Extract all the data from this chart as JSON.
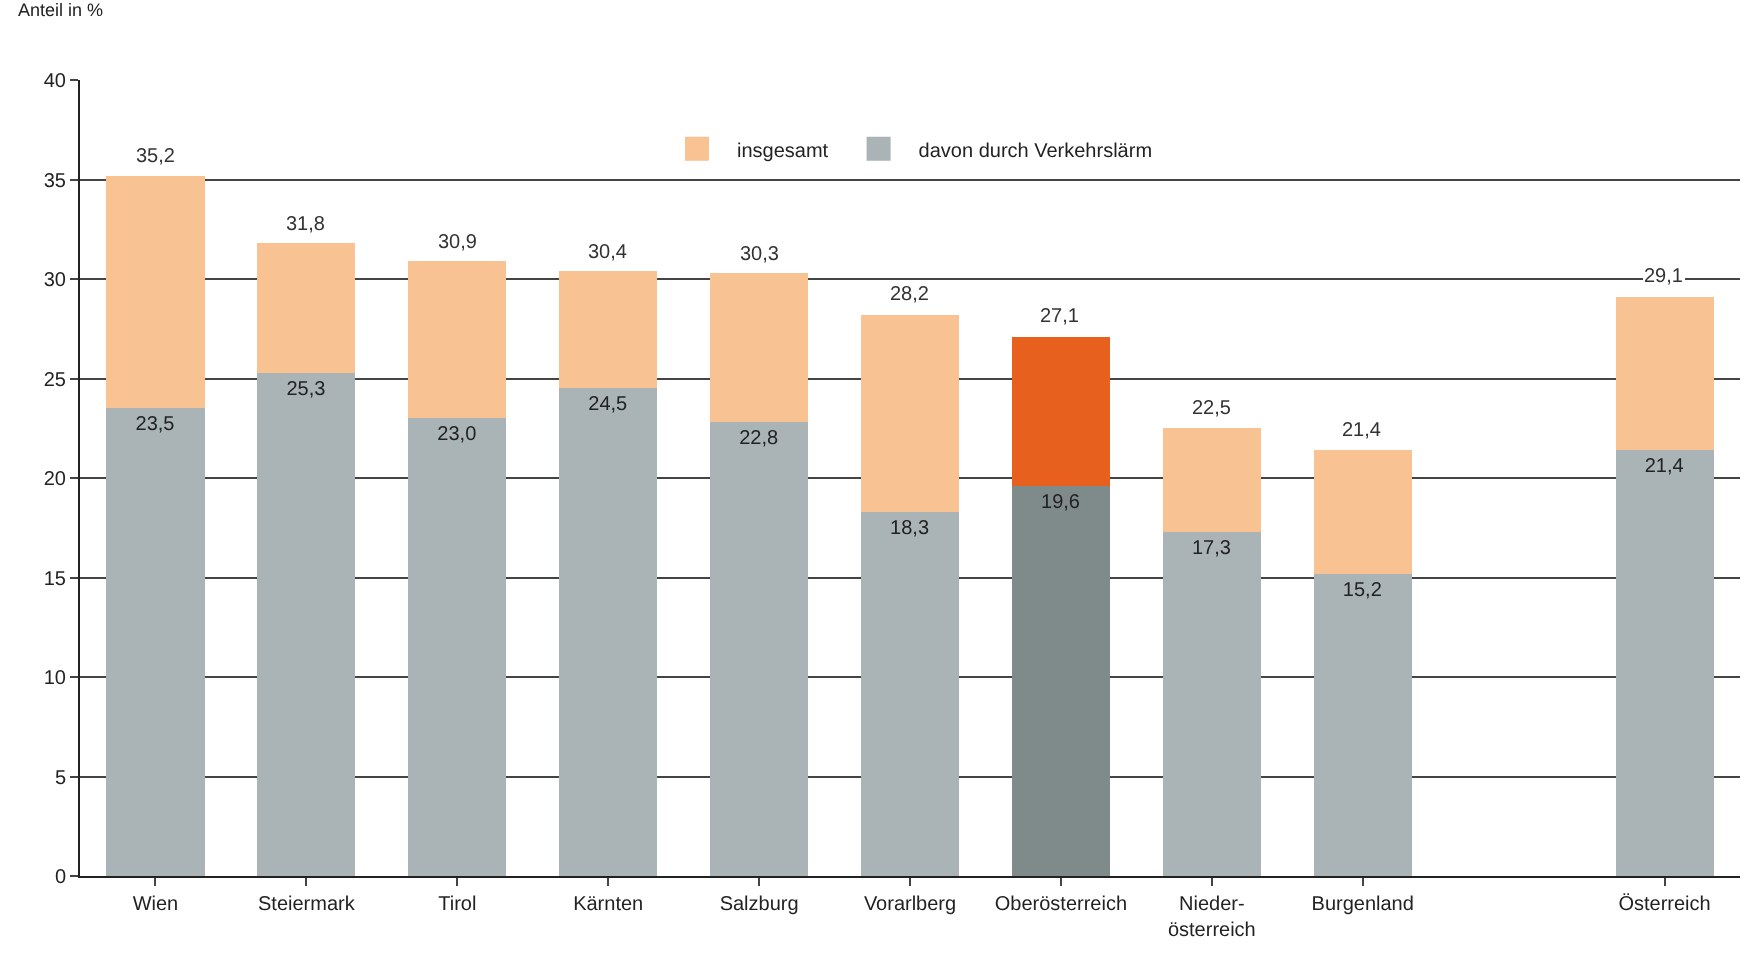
{
  "chart_data": {
    "type": "bar",
    "stacked": true,
    "ylabel": "Anteil in %",
    "categories": [
      "Wien",
      "Steiermark",
      "Tirol",
      "Kärnten",
      "Salzburg",
      "Vorarlberg",
      "Oberösterreich",
      "Nieder- österreich",
      "Burgenland",
      null,
      "Österreich"
    ],
    "series": [
      {
        "name": "davon durch Verkehrslärm",
        "color": "#aab4b6",
        "colors": [
          null,
          null,
          null,
          null,
          null,
          null,
          "#7f8a8b",
          null,
          null,
          null,
          null
        ],
        "values": [
          23.5,
          25.3,
          23.0,
          24.5,
          22.8,
          18.3,
          19.6,
          17.3,
          15.2,
          null,
          21.4
        ],
        "value_labels": [
          "23,5",
          "25,3",
          "23,0",
          "24,5",
          "22,8",
          "18,3",
          "19,6",
          "17,3",
          "15,2",
          null,
          "21,4"
        ]
      },
      {
        "name": "insgesamt",
        "color": "#f9c293",
        "colors": [
          null,
          null,
          null,
          null,
          null,
          null,
          "#e8601e",
          null,
          null,
          null,
          null
        ],
        "values": [
          11.7,
          6.5,
          7.9,
          5.9,
          7.5,
          9.9,
          7.5,
          5.2,
          6.2,
          null,
          7.7
        ]
      }
    ],
    "totals": [
      "35,2",
      "31,8",
      "30,9",
      "30,4",
      "30,3",
      "28,2",
      "27,1",
      "22,5",
      "21,4",
      null,
      "29,1"
    ],
    "ylim": [
      0,
      40
    ],
    "yticks": [
      0,
      5,
      10,
      15,
      20,
      25,
      30,
      35,
      40
    ],
    "grid": "y",
    "legend": "top"
  }
}
